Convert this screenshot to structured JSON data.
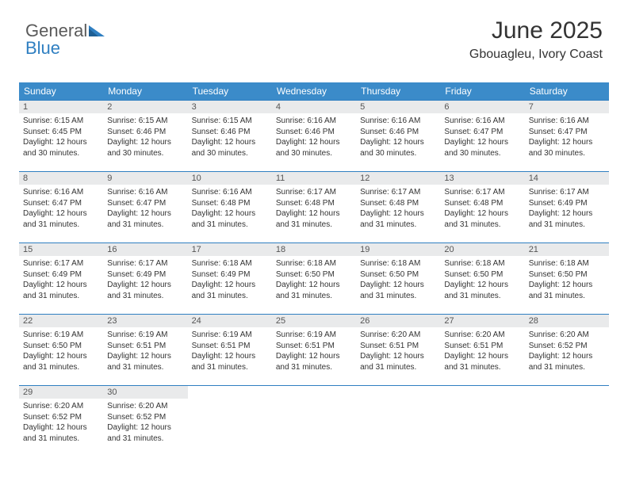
{
  "logo": {
    "text1": "General",
    "text2": "Blue"
  },
  "header": {
    "title": "June 2025",
    "location": "Gbouagleu, Ivory Coast"
  },
  "colors": {
    "header_bg": "#3b8bc9",
    "header_text": "#ffffff",
    "daynum_bg": "#e9eaeb",
    "border": "#2f7fc1",
    "logo_gray": "#5a5a5a",
    "logo_blue": "#2f7fc1"
  },
  "dayHeaders": [
    "Sunday",
    "Monday",
    "Tuesday",
    "Wednesday",
    "Thursday",
    "Friday",
    "Saturday"
  ],
  "weeks": [
    [
      {
        "n": "1",
        "sr": "6:15 AM",
        "ss": "6:45 PM",
        "dl": "12 hours and 30 minutes."
      },
      {
        "n": "2",
        "sr": "6:15 AM",
        "ss": "6:46 PM",
        "dl": "12 hours and 30 minutes."
      },
      {
        "n": "3",
        "sr": "6:15 AM",
        "ss": "6:46 PM",
        "dl": "12 hours and 30 minutes."
      },
      {
        "n": "4",
        "sr": "6:16 AM",
        "ss": "6:46 PM",
        "dl": "12 hours and 30 minutes."
      },
      {
        "n": "5",
        "sr": "6:16 AM",
        "ss": "6:46 PM",
        "dl": "12 hours and 30 minutes."
      },
      {
        "n": "6",
        "sr": "6:16 AM",
        "ss": "6:47 PM",
        "dl": "12 hours and 30 minutes."
      },
      {
        "n": "7",
        "sr": "6:16 AM",
        "ss": "6:47 PM",
        "dl": "12 hours and 30 minutes."
      }
    ],
    [
      {
        "n": "8",
        "sr": "6:16 AM",
        "ss": "6:47 PM",
        "dl": "12 hours and 31 minutes."
      },
      {
        "n": "9",
        "sr": "6:16 AM",
        "ss": "6:47 PM",
        "dl": "12 hours and 31 minutes."
      },
      {
        "n": "10",
        "sr": "6:16 AM",
        "ss": "6:48 PM",
        "dl": "12 hours and 31 minutes."
      },
      {
        "n": "11",
        "sr": "6:17 AM",
        "ss": "6:48 PM",
        "dl": "12 hours and 31 minutes."
      },
      {
        "n": "12",
        "sr": "6:17 AM",
        "ss": "6:48 PM",
        "dl": "12 hours and 31 minutes."
      },
      {
        "n": "13",
        "sr": "6:17 AM",
        "ss": "6:48 PM",
        "dl": "12 hours and 31 minutes."
      },
      {
        "n": "14",
        "sr": "6:17 AM",
        "ss": "6:49 PM",
        "dl": "12 hours and 31 minutes."
      }
    ],
    [
      {
        "n": "15",
        "sr": "6:17 AM",
        "ss": "6:49 PM",
        "dl": "12 hours and 31 minutes."
      },
      {
        "n": "16",
        "sr": "6:17 AM",
        "ss": "6:49 PM",
        "dl": "12 hours and 31 minutes."
      },
      {
        "n": "17",
        "sr": "6:18 AM",
        "ss": "6:49 PM",
        "dl": "12 hours and 31 minutes."
      },
      {
        "n": "18",
        "sr": "6:18 AM",
        "ss": "6:50 PM",
        "dl": "12 hours and 31 minutes."
      },
      {
        "n": "19",
        "sr": "6:18 AM",
        "ss": "6:50 PM",
        "dl": "12 hours and 31 minutes."
      },
      {
        "n": "20",
        "sr": "6:18 AM",
        "ss": "6:50 PM",
        "dl": "12 hours and 31 minutes."
      },
      {
        "n": "21",
        "sr": "6:18 AM",
        "ss": "6:50 PM",
        "dl": "12 hours and 31 minutes."
      }
    ],
    [
      {
        "n": "22",
        "sr": "6:19 AM",
        "ss": "6:50 PM",
        "dl": "12 hours and 31 minutes."
      },
      {
        "n": "23",
        "sr": "6:19 AM",
        "ss": "6:51 PM",
        "dl": "12 hours and 31 minutes."
      },
      {
        "n": "24",
        "sr": "6:19 AM",
        "ss": "6:51 PM",
        "dl": "12 hours and 31 minutes."
      },
      {
        "n": "25",
        "sr": "6:19 AM",
        "ss": "6:51 PM",
        "dl": "12 hours and 31 minutes."
      },
      {
        "n": "26",
        "sr": "6:20 AM",
        "ss": "6:51 PM",
        "dl": "12 hours and 31 minutes."
      },
      {
        "n": "27",
        "sr": "6:20 AM",
        "ss": "6:51 PM",
        "dl": "12 hours and 31 minutes."
      },
      {
        "n": "28",
        "sr": "6:20 AM",
        "ss": "6:52 PM",
        "dl": "12 hours and 31 minutes."
      }
    ],
    [
      {
        "n": "29",
        "sr": "6:20 AM",
        "ss": "6:52 PM",
        "dl": "12 hours and 31 minutes."
      },
      {
        "n": "30",
        "sr": "6:20 AM",
        "ss": "6:52 PM",
        "dl": "12 hours and 31 minutes."
      },
      null,
      null,
      null,
      null,
      null
    ]
  ],
  "labels": {
    "sunrise": "Sunrise: ",
    "sunset": "Sunset: ",
    "daylight": "Daylight: "
  }
}
